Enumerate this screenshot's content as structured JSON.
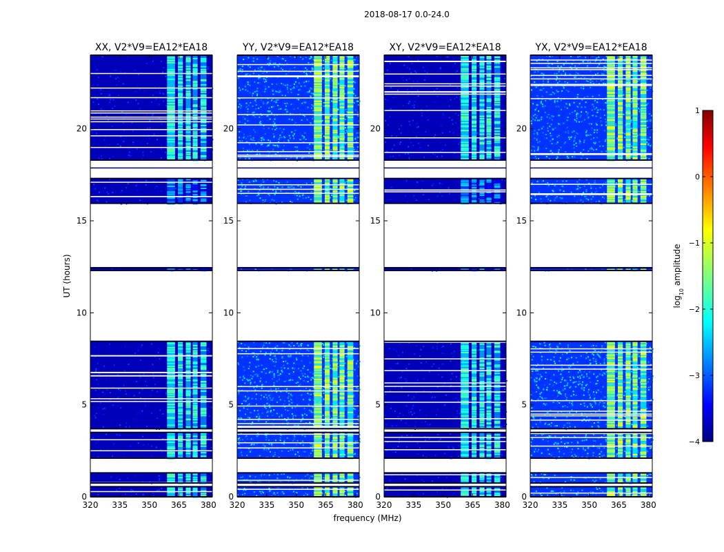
{
  "suptitle": "2018-08-17 0.0-24.0",
  "chart_data": {
    "type": "heatmap",
    "title": "2018-08-17 0.0-24.0",
    "xlabel": "frequency (MHz)",
    "ylabel": "UT (hours)",
    "xlim": [
      320,
      382
    ],
    "ylim": [
      0,
      24
    ],
    "xticks": [
      320,
      335,
      350,
      365,
      380
    ],
    "yticks": [
      0,
      5,
      10,
      15,
      20
    ],
    "panels": [
      {
        "title": "XX, V2*V9=EA12*EA18",
        "intensity": "low"
      },
      {
        "title": "YY, V2*V9=EA12*EA18",
        "intensity": "high"
      },
      {
        "title": "XY, V2*V9=EA12*EA18",
        "intensity": "low"
      },
      {
        "title": "YX, V2*V9=EA12*EA18",
        "intensity": "high"
      }
    ],
    "data_time_ranges_hours": [
      [
        0.0,
        0.55
      ],
      [
        0.75,
        1.3
      ],
      [
        2.1,
        3.5
      ],
      [
        3.7,
        8.45
      ],
      [
        12.3,
        12.45
      ],
      [
        15.95,
        17.3
      ],
      [
        18.3,
        24.0
      ]
    ],
    "rfi_band_MHz": [
      359,
      380
    ],
    "colorbar": {
      "label": "log10 amplitude",
      "label_base": "log",
      "label_sub": "10",
      "label_rest": " amplitude",
      "min": -4,
      "max": 1,
      "ticks": [
        -4,
        -3,
        -2,
        -1,
        0,
        1
      ],
      "tick_labels": [
        "−4",
        "−3",
        "−2",
        "−1",
        "0",
        "1"
      ]
    }
  },
  "colors": {
    "background_low": "#00007f",
    "mid": "#0040ff",
    "cyan": "#00e0ff",
    "yellow": "#e0ff20",
    "red": "#ff2000"
  }
}
